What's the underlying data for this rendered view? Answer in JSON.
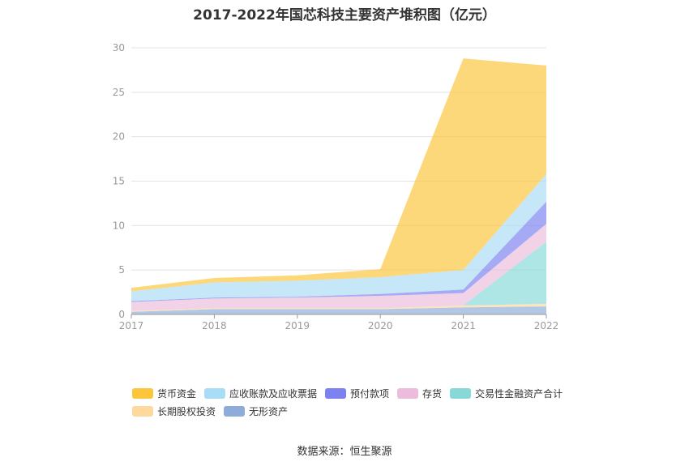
{
  "chart_data": {
    "type": "area",
    "stacked": true,
    "title": "2017-2022年国芯科技主要资产堆积图（亿元）",
    "x": [
      "2017",
      "2018",
      "2019",
      "2020",
      "2021",
      "2022"
    ],
    "ylim": [
      0,
      30
    ],
    "yticks": [
      0,
      5,
      10,
      15,
      20,
      25,
      30
    ],
    "grid": true,
    "legend_position": "bottom",
    "series": [
      {
        "name": "无形资产",
        "color": "#8eacd9",
        "values": [
          0.3,
          0.6,
          0.6,
          0.6,
          0.8,
          0.9
        ]
      },
      {
        "name": "长期股权投资",
        "color": "#fdd99b",
        "values": [
          0.1,
          0.1,
          0.1,
          0.1,
          0.2,
          0.3
        ]
      },
      {
        "name": "交易性金融资产合计",
        "color": "#88d8d8",
        "values": [
          0,
          0,
          0,
          0,
          0,
          7.0
        ]
      },
      {
        "name": "存货",
        "color": "#ecbcdc",
        "values": [
          1.0,
          1.1,
          1.2,
          1.4,
          1.4,
          2.0
        ]
      },
      {
        "name": "预付款项",
        "color": "#7c82f0",
        "values": [
          0.1,
          0.1,
          0.1,
          0.2,
          0.4,
          2.5
        ]
      },
      {
        "name": "应收账款及应收票据",
        "color": "#a9dcf5",
        "values": [
          1.1,
          1.7,
          1.8,
          1.9,
          2.2,
          3.1
        ]
      },
      {
        "name": "货币资金",
        "color": "#fcc53b",
        "values": [
          0.4,
          0.5,
          0.6,
          0.9,
          23.8,
          12.2
        ]
      }
    ]
  },
  "legend_order": [
    "货币资金",
    "应收账款及应收票据",
    "预付款项",
    "存货",
    "交易性金融资产合计",
    "长期股权投资",
    "无形资产"
  ],
  "source": "数据来源：恒生聚源"
}
